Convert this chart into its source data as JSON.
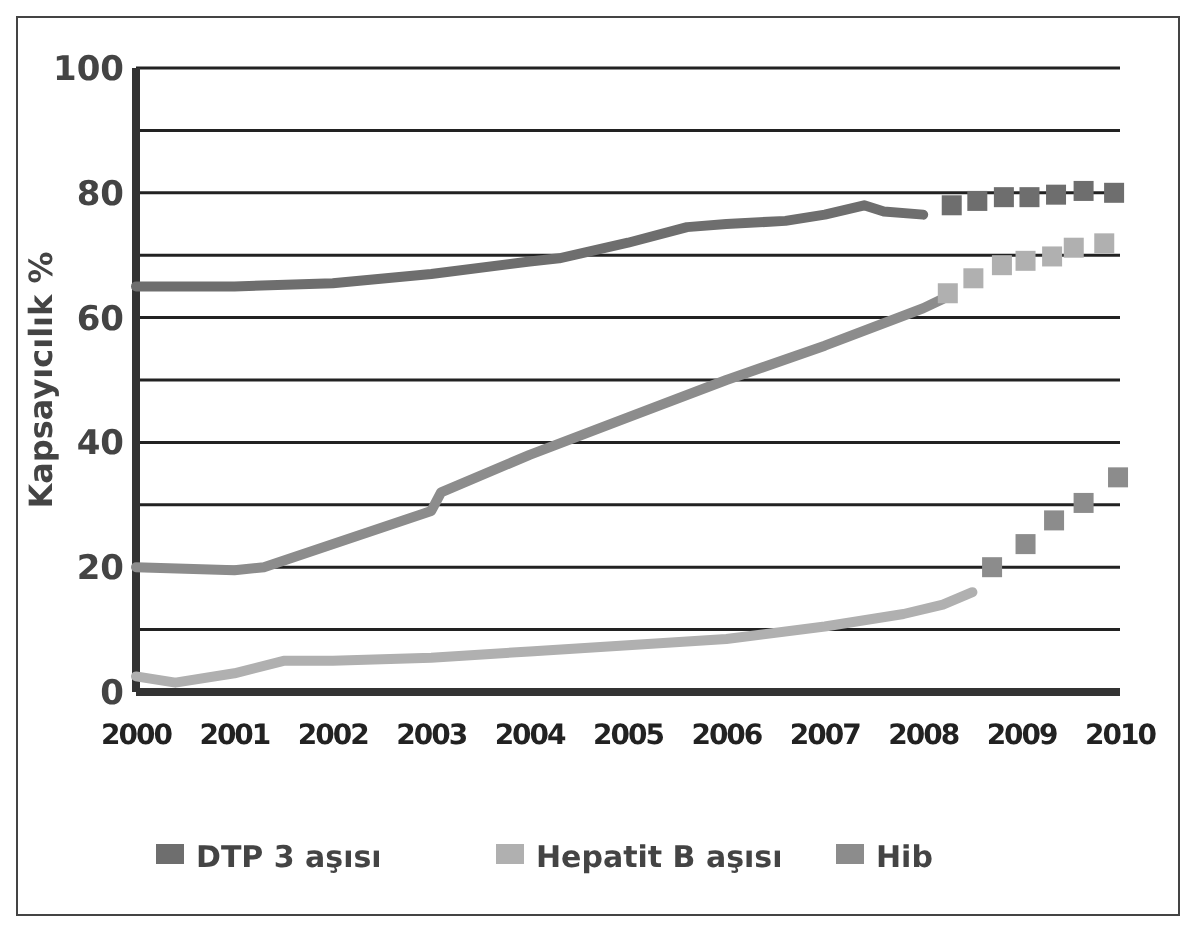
{
  "chart_data": {
    "type": "line",
    "ylabel": "Kapsayıcılık %",
    "xlim": [
      2000,
      2010
    ],
    "xticks": [
      2000,
      2001,
      2002,
      2003,
      2004,
      2005,
      2006,
      2007,
      2008,
      2009,
      2010
    ],
    "ylim": [
      0,
      100
    ],
    "yticks": [
      0,
      {
        "value": 10,
        "label": null
      },
      20,
      {
        "value": 30,
        "label": null
      },
      40,
      {
        "value": 50,
        "label": null
      },
      60,
      {
        "value": 70,
        "label": null
      },
      80,
      {
        "value": 90,
        "label": null
      },
      100
    ],
    "grid": "y",
    "legend": "bottom",
    "series": [
      {
        "color": "#6e6e6e",
        "x": [
          2000,
          2001,
          2002,
          2003,
          2004,
          2004.3,
          2005,
          2005.6,
          2006,
          2006.6,
          2007,
          2007.4,
          2007.6,
          2008
        ],
        "values": [
          65,
          65,
          65.5,
          67,
          69,
          69.5,
          72,
          74.5,
          75,
          75.5,
          76.5,
          78,
          77,
          76.5
        ]
      },
      {
        "color": "#8c8c8c",
        "x": [
          2000,
          2001,
          2001.3,
          2003,
          2003.1,
          2004,
          2005,
          2006,
          2007,
          2008,
          2008.2
        ],
        "values": [
          20,
          19.5,
          20,
          29,
          32,
          38,
          44,
          50,
          55.5,
          61.5,
          63
        ]
      },
      {
        "color": "#b0b0b0",
        "x": [
          2000,
          2000.4,
          2001,
          2001.5,
          2002,
          2003,
          2004,
          2005,
          2006,
          2007,
          2007.8,
          2008.2,
          2008.5
        ],
        "values": [
          2.5,
          1.5,
          3,
          5,
          5,
          5.5,
          6.5,
          7.5,
          8.5,
          10.5,
          12.5,
          14,
          16
        ]
      },
      {
        "type": "scatter",
        "name": "DTP 3 aşısı",
        "color": "#6e6e6e",
        "marker": "square",
        "x": [
          2008.29,
          2008.55,
          2008.82,
          2009.08,
          2009.35,
          2009.63,
          2009.94
        ],
        "values": [
          78,
          78.7,
          79.3,
          79.3,
          79.7,
          80.3,
          80
        ]
      },
      {
        "type": "scatter",
        "name": "Hepatit B aşısı",
        "color": "#b0b0b0",
        "marker": "square",
        "x": [
          2008.25,
          2008.51,
          2008.8,
          2009.04,
          2009.31,
          2009.53,
          2009.84
        ],
        "values": [
          63.9,
          66.3,
          68.4,
          69.1,
          69.8,
          71.2,
          71.9
        ]
      },
      {
        "type": "scatter",
        "name": "Hib",
        "color": "#8c8c8c",
        "marker": "square",
        "x": [
          2008.7,
          2009.04,
          2009.33,
          2009.63,
          2009.98
        ],
        "values": [
          20,
          23.7,
          27.5,
          30.3,
          34.4
        ]
      }
    ]
  }
}
